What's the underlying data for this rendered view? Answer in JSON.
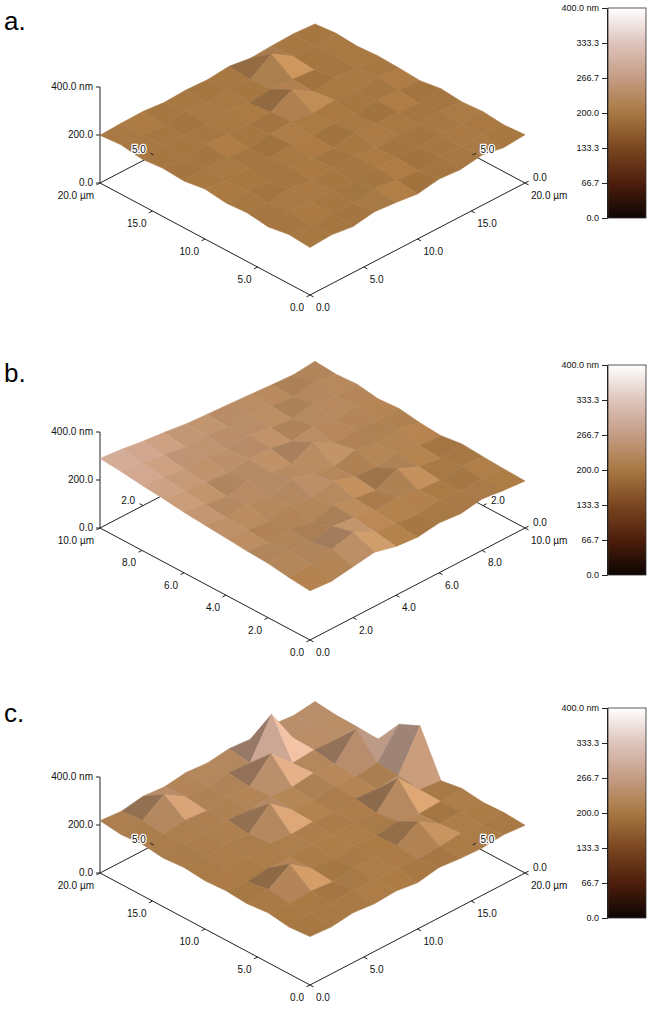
{
  "chart_data": [
    {
      "type": "surface",
      "title": "a.",
      "xlim": [
        0,
        20
      ],
      "ylim": [
        0,
        20
      ],
      "zlim": [
        0,
        400
      ],
      "xticks": [
        {
          "value": 0,
          "label": "0.0"
        },
        {
          "value": 5,
          "label": "5.0"
        },
        {
          "value": 10,
          "label": "10.0"
        },
        {
          "value": 15,
          "label": "15.0"
        },
        {
          "value": 20,
          "label": "20.0 µm"
        }
      ],
      "yticks": [
        {
          "value": 0,
          "label": "0.0"
        },
        {
          "value": 5,
          "label": "5.0"
        },
        {
          "value": 10,
          "label": "10.0"
        },
        {
          "value": 15,
          "label": "15.0"
        },
        {
          "value": 20,
          "label": "20.0 µm"
        }
      ],
      "zticks": [
        {
          "value": 0,
          "label": "0.0"
        },
        {
          "value": 200,
          "label": "200.0"
        },
        {
          "value": 400,
          "label": "400.0 nm"
        }
      ],
      "back_xticks": [
        {
          "value": 5,
          "label": "5.0"
        }
      ],
      "back_yticks": [
        {
          "value": 0,
          "label": "0.0"
        },
        {
          "value": 5,
          "label": "5.0"
        }
      ],
      "surface": {
        "x": [
          0,
          2,
          4,
          6,
          8,
          10,
          12,
          14,
          16,
          18,
          20
        ],
        "y": [
          0,
          2,
          4,
          6,
          8,
          10,
          12,
          14,
          16,
          18,
          20
        ],
        "z": [
          [
            198,
            204,
            192,
            207,
            199,
            188,
            203,
            196,
            210,
            194,
            201
          ],
          [
            205,
            193,
            201,
            196,
            211,
            199,
            190,
            206,
            197,
            203,
            195
          ],
          [
            191,
            208,
            197,
            202,
            189,
            205,
            198,
            193,
            207,
            199,
            204
          ],
          [
            203,
            196,
            210,
            194,
            200,
            207,
            192,
            201,
            196,
            209,
            198
          ],
          [
            197,
            202,
            189,
            206,
            198,
            193,
            211,
            199,
            204,
            191,
            206
          ],
          [
            208,
            194,
            203,
            199,
            207,
            196,
            202,
            190,
            205,
            200,
            193
          ],
          [
            195,
            206,
            198,
            191,
            203,
            209,
            197,
            205,
            192,
            207,
            199
          ],
          [
            201,
            190,
            207,
            204,
            196,
            201,
            248,
            194,
            209,
            196,
            203
          ],
          [
            193,
            205,
            199,
            197,
            210,
            192,
            204,
            199,
            191,
            205,
            197
          ],
          [
            206,
            198,
            192,
            209,
            195,
            203,
            196,
            258,
            201,
            198,
            204
          ],
          [
            199,
            203,
            205,
            196,
            201,
            197,
            206,
            193,
            199,
            202,
            196
          ]
        ]
      },
      "colorbar": {
        "range": [
          0,
          400
        ],
        "ticks": [
          {
            "value": 0,
            "label": "0.0"
          },
          {
            "value": 66.7,
            "label": "66.7"
          },
          {
            "value": 133.3,
            "label": "133.3"
          },
          {
            "value": 200,
            "label": "200.0"
          },
          {
            "value": 266.7,
            "label": "266.7"
          },
          {
            "value": 333.3,
            "label": "333.3"
          },
          {
            "value": 400,
            "label": "400.0 nm"
          }
        ]
      }
    },
    {
      "type": "surface",
      "title": "b.",
      "xlim": [
        0,
        10
      ],
      "ylim": [
        0,
        10
      ],
      "zlim": [
        0,
        400
      ],
      "xticks": [
        {
          "value": 0,
          "label": "0.0"
        },
        {
          "value": 2,
          "label": "2.0"
        },
        {
          "value": 4,
          "label": "4.0"
        },
        {
          "value": 6,
          "label": "6.0"
        },
        {
          "value": 8,
          "label": "8.0"
        },
        {
          "value": 10,
          "label": "10.0 µm"
        }
      ],
      "yticks": [
        {
          "value": 0,
          "label": "0.0"
        },
        {
          "value": 2,
          "label": "2.0"
        },
        {
          "value": 4,
          "label": "4.0"
        },
        {
          "value": 6,
          "label": "6.0"
        },
        {
          "value": 8,
          "label": "8.0"
        },
        {
          "value": 10,
          "label": "10.0 µm"
        }
      ],
      "zticks": [
        {
          "value": 0,
          "label": "0.0"
        },
        {
          "value": 200,
          "label": "200.0"
        },
        {
          "value": 400,
          "label": "400.0 nm"
        }
      ],
      "back_xticks": [
        {
          "value": 2,
          "label": "2.0"
        }
      ],
      "back_yticks": [
        {
          "value": 0,
          "label": "0.0"
        },
        {
          "value": 2,
          "label": "2.0"
        }
      ],
      "surface": {
        "x": [
          0,
          1,
          2,
          3,
          4,
          5,
          6,
          7,
          8,
          9,
          10
        ],
        "y": [
          0,
          1,
          2,
          3,
          4,
          5,
          6,
          7,
          8,
          9,
          10
        ],
        "z": [
          [
            205,
            198,
            212,
            226,
            203,
            195,
            208,
            199,
            214,
            203,
            196
          ],
          [
            214,
            221,
            238,
            262,
            218,
            204,
            196,
            210,
            201,
            207,
            199
          ],
          [
            226,
            232,
            219,
            241,
            229,
            211,
            223,
            205,
            198,
            212,
            204
          ],
          [
            231,
            218,
            227,
            209,
            234,
            216,
            203,
            247,
            209,
            196,
            210
          ],
          [
            238,
            225,
            212,
            236,
            221,
            242,
            214,
            206,
            221,
            203,
            198
          ],
          [
            245,
            229,
            241,
            218,
            253,
            224,
            209,
            232,
            214,
            226,
            205
          ],
          [
            252,
            238,
            224,
            246,
            231,
            219,
            264,
            212,
            225,
            209,
            218
          ],
          [
            263,
            247,
            236,
            228,
            242,
            237,
            221,
            238,
            216,
            231,
            212
          ],
          [
            271,
            258,
            244,
            251,
            233,
            246,
            229,
            221,
            241,
            218,
            226
          ],
          [
            282,
            269,
            257,
            243,
            248,
            232,
            241,
            228,
            219,
            235,
            221
          ],
          [
            290,
            281,
            268,
            259,
            247,
            241,
            236,
            230,
            224,
            219,
            228
          ]
        ]
      },
      "colorbar": {
        "range": [
          0,
          400
        ],
        "ticks": [
          {
            "value": 0,
            "label": "0.0"
          },
          {
            "value": 66.7,
            "label": "66.7"
          },
          {
            "value": 133.3,
            "label": "133.3"
          },
          {
            "value": 200,
            "label": "200.0"
          },
          {
            "value": 266.7,
            "label": "266.7"
          },
          {
            "value": 333.3,
            "label": "333.3"
          },
          {
            "value": 400,
            "label": "400.0 nm"
          }
        ]
      }
    },
    {
      "type": "surface",
      "title": "c.",
      "xlim": [
        0,
        20
      ],
      "ylim": [
        0,
        20
      ],
      "zlim": [
        0,
        400
      ],
      "xticks": [
        {
          "value": 0,
          "label": "0.0"
        },
        {
          "value": 5,
          "label": "5.0"
        },
        {
          "value": 10,
          "label": "10.0"
        },
        {
          "value": 15,
          "label": "15.0"
        },
        {
          "value": 20,
          "label": "20.0 µm"
        }
      ],
      "yticks": [
        {
          "value": 0,
          "label": "0.0"
        },
        {
          "value": 5,
          "label": "5.0"
        },
        {
          "value": 10,
          "label": "10.0"
        },
        {
          "value": 15,
          "label": "15.0"
        },
        {
          "value": 20,
          "label": "20.0 µm"
        }
      ],
      "zticks": [
        {
          "value": 0,
          "label": "0.0"
        },
        {
          "value": 200,
          "label": "200.0"
        },
        {
          "value": 400,
          "label": "400.0 nm"
        }
      ],
      "back_xticks": [
        {
          "value": 5,
          "label": "5.0"
        }
      ],
      "back_yticks": [
        {
          "value": 0,
          "label": "0.0"
        },
        {
          "value": 5,
          "label": "5.0"
        }
      ],
      "surface": {
        "x": [
          0,
          2,
          4,
          6,
          8,
          10,
          12,
          14,
          16,
          18,
          20
        ],
        "y": [
          0,
          2,
          4,
          6,
          8,
          10,
          12,
          14,
          16,
          18,
          20
        ],
        "z": [
          [
            202,
            196,
            208,
            199,
            205,
            193,
            210,
            201,
            197,
            206,
            199
          ],
          [
            195,
            207,
            199,
            212,
            201,
            208,
            196,
            204,
            211,
            198,
            205
          ],
          [
            208,
            199,
            204,
            196,
            213,
            200,
            207,
            260,
            203,
            210,
            201
          ],
          [
            199,
            211,
            270,
            205,
            198,
            209,
            202,
            214,
            199,
            205,
            212
          ],
          [
            206,
            197,
            209,
            201,
            215,
            204,
            211,
            203,
            300,
            207,
            198
          ],
          [
            201,
            213,
            203,
            218,
            207,
            212,
            205,
            216,
            209,
            221,
            380
          ],
          [
            210,
            204,
            215,
            208,
            290,
            217,
            210,
            222,
            214,
            226,
            340
          ],
          [
            203,
            216,
            209,
            221,
            213,
            224,
            218,
            229,
            220,
            320,
            231
          ],
          [
            214,
            208,
            220,
            212,
            226,
            219,
            310,
            224,
            233,
            227,
            236
          ],
          [
            207,
            219,
            280,
            224,
            217,
            230,
            225,
            380,
            236,
            241,
            238
          ],
          [
            218,
            211,
            226,
            219,
            232,
            225,
            238,
            231,
            244,
            236,
            248
          ]
        ]
      },
      "colorbar": {
        "range": [
          0,
          400
        ],
        "ticks": [
          {
            "value": 0,
            "label": "0.0"
          },
          {
            "value": 66.7,
            "label": "66.7"
          },
          {
            "value": 133.3,
            "label": "133.3"
          },
          {
            "value": 200,
            "label": "200.0"
          },
          {
            "value": 266.7,
            "label": "266.7"
          },
          {
            "value": 333.3,
            "label": "333.3"
          },
          {
            "value": 400,
            "label": "400.0 nm"
          }
        ]
      }
    }
  ]
}
